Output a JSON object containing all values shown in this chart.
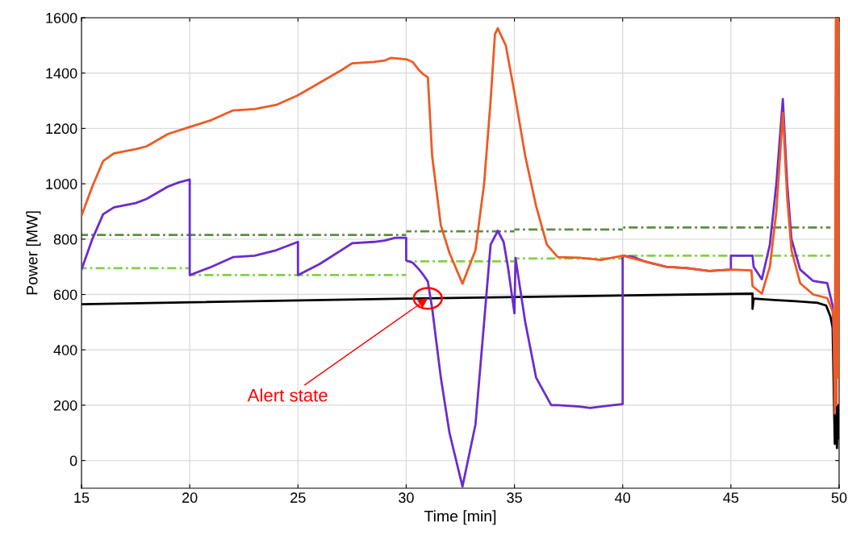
{
  "chart_data": {
    "type": "line",
    "xlabel": "Time [min]",
    "ylabel": "Power [MW]",
    "xlim": [
      15,
      50
    ],
    "ylim": [
      -100,
      1600
    ],
    "xticks": [
      15,
      20,
      25,
      30,
      35,
      40,
      45,
      50
    ],
    "yticks": [
      0,
      200,
      400,
      600,
      800,
      1000,
      1200,
      1400,
      1600
    ],
    "grid": true,
    "series": [
      {
        "color": "#5e8c45",
        "line_style": "dashdot",
        "x": [
          15,
          30
        ],
        "values": [
          815,
          815
        ]
      },
      {
        "color": "#5e8c45",
        "line_style": "dashdot",
        "x": [
          30,
          35
        ],
        "values": [
          828,
          828
        ]
      },
      {
        "color": "#5e8c45",
        "line_style": "dashdot",
        "x": [
          35,
          40
        ],
        "values": [
          835,
          835
        ]
      },
      {
        "color": "#5e8c45",
        "line_style": "dashdot",
        "x": [
          40,
          49.6
        ],
        "values": [
          842,
          842
        ]
      },
      {
        "color": "#84d043",
        "line_style": "dashdot",
        "x": [
          15,
          20
        ],
        "values": [
          695,
          695
        ]
      },
      {
        "color": "#84d043",
        "line_style": "dashdot",
        "x": [
          20,
          30
        ],
        "values": [
          670,
          670
        ]
      },
      {
        "color": "#84d043",
        "line_style": "dashdot",
        "x": [
          30,
          35
        ],
        "values": [
          720,
          720
        ]
      },
      {
        "color": "#84d043",
        "line_style": "dashdot",
        "x": [
          35,
          40
        ],
        "values": [
          730,
          730
        ]
      },
      {
        "color": "#84d043",
        "line_style": "dashdot",
        "x": [
          40,
          49.6
        ],
        "values": [
          740,
          740
        ]
      },
      {
        "color": "#000000",
        "line_style": "solid",
        "x": [
          15,
          30,
          46,
          46.0,
          46.05,
          47,
          48,
          49,
          49.4,
          49.6,
          49.7,
          49.8,
          49.85,
          49.9,
          49.95,
          50
        ],
        "values": [
          565,
          585,
          603,
          548,
          585,
          580,
          576,
          570,
          560,
          520,
          480,
          60,
          350,
          45,
          200,
          80
        ]
      },
      {
        "color": "#6a2bd0",
        "line_style": "solid",
        "x": [
          15,
          15.5,
          16,
          16.5,
          17.5,
          18,
          19,
          19.5,
          20,
          20,
          21,
          22,
          23,
          24,
          25,
          25,
          26,
          27,
          27.5,
          28.5,
          29,
          29.5,
          30,
          30,
          30.3,
          30.6,
          30.8,
          31,
          31.2,
          31.6,
          32,
          32.6,
          33.2,
          33.6,
          33.9,
          34.23,
          34.5,
          34.7,
          35,
          35.05,
          35.5,
          36,
          36.7,
          37,
          38,
          38.5,
          39,
          40,
          40,
          40.5,
          41,
          42,
          43,
          44,
          45,
          45,
          46,
          46.05,
          46.43,
          46.8,
          47.1,
          47.4,
          47.6,
          47.8,
          48.2,
          48.8,
          49.45,
          49.7,
          49.8,
          49.9,
          50
        ],
        "values": [
          690,
          800,
          890,
          915,
          930,
          945,
          990,
          1005,
          1015,
          670,
          700,
          735,
          740,
          760,
          790,
          670,
          710,
          760,
          785,
          790,
          795,
          805,
          805,
          723,
          715,
          690,
          670,
          647,
          550,
          300,
          100,
          -94,
          130,
          500,
          780,
          830,
          790,
          700,
          532,
          732,
          500,
          300,
          200,
          200,
          195,
          190,
          195,
          204,
          740,
          735,
          720,
          700,
          695,
          685,
          690,
          740,
          740,
          700,
          655,
          780,
          1000,
          1306,
          1000,
          800,
          690,
          649,
          641,
          560,
          300,
          1100,
          1150
        ]
      },
      {
        "color": "#ee5a24",
        "line_style": "solid",
        "x": [
          15,
          15.5,
          16,
          16.5,
          17.5,
          18,
          19,
          20,
          21,
          22,
          23,
          24,
          25,
          26,
          27,
          27.5,
          28.5,
          29,
          29.3,
          30,
          30.3,
          30.6,
          30.8,
          31,
          31.2,
          31.6,
          32,
          32.6,
          33.2,
          33.6,
          33.9,
          34.1,
          34.23,
          34.6,
          35,
          35.5,
          36,
          36.5,
          37,
          38,
          39,
          40,
          40.5,
          41,
          42,
          43,
          44,
          45,
          45.95,
          46.0,
          46.43,
          46.8,
          47.1,
          47.4,
          47.6,
          47.8,
          48.2,
          48.8,
          49.45,
          49.7,
          49.75,
          49.8,
          49.85,
          49.88,
          49.92,
          49.95,
          50
        ],
        "values": [
          885,
          990,
          1082,
          1110,
          1125,
          1135,
          1180,
          1205,
          1230,
          1265,
          1270,
          1285,
          1320,
          1365,
          1410,
          1435,
          1440,
          1445,
          1455,
          1450,
          1440,
          1410,
          1395,
          1385,
          1100,
          850,
          750,
          639,
          760,
          1000,
          1300,
          1540,
          1562,
          1500,
          1330,
          1100,
          920,
          780,
          735,
          733,
          725,
          740,
          730,
          720,
          700,
          695,
          685,
          690,
          687,
          630,
          603,
          700,
          900,
          1256,
          950,
          760,
          641,
          600,
          587,
          540,
          500,
          170,
          1600,
          200,
          1600,
          300,
          1600
        ]
      }
    ],
    "annotations": [
      {
        "text": "Alert state",
        "x": 31,
        "y": 586
      }
    ]
  }
}
